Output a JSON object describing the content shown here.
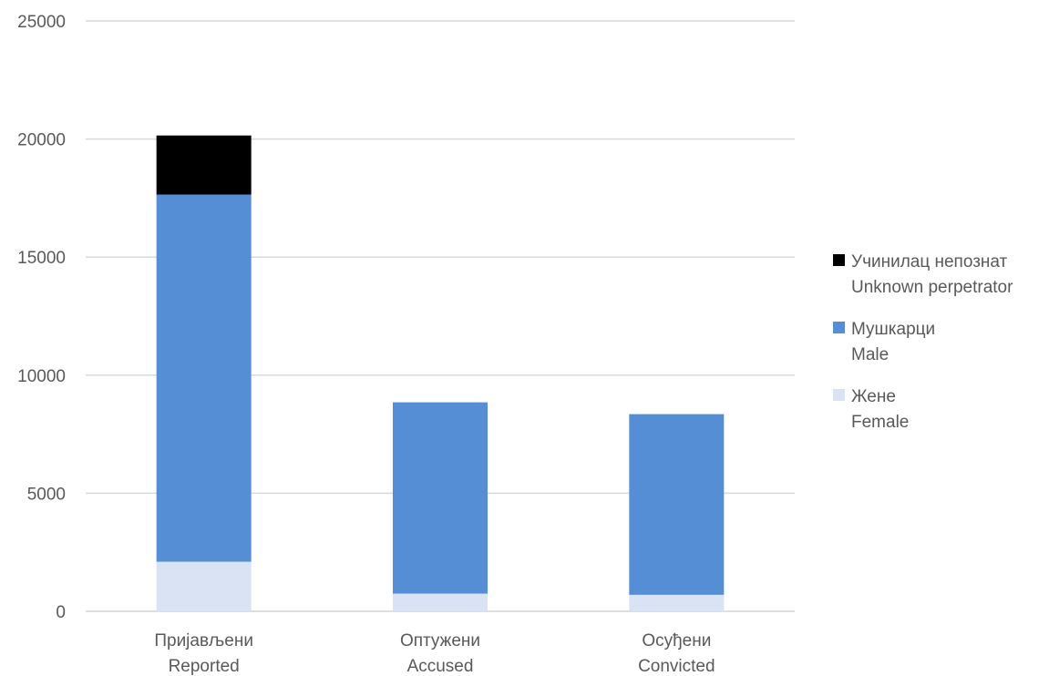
{
  "chart_data": {
    "type": "bar",
    "stacked": true,
    "categories": [
      [
        "Пријављени",
        "Reported"
      ],
      [
        "Оптужени",
        "Accused"
      ],
      [
        "Осуђени",
        "Convicted"
      ]
    ],
    "series": [
      {
        "name": [
          "Жене",
          "Female"
        ],
        "color": "#dae3f3",
        "values": [
          2100,
          750,
          700
        ]
      },
      {
        "name": [
          "Мушкарци",
          "Male"
        ],
        "color": "#558ed5",
        "values": [
          15550,
          8100,
          7650
        ]
      },
      {
        "name": [
          "Учинилац непознат",
          "Unknown perpetrator"
        ],
        "color": "#000000",
        "values": [
          2500,
          0,
          0
        ]
      }
    ],
    "ylim": [
      0,
      25000
    ],
    "yticks": [
      0,
      5000,
      10000,
      15000,
      20000,
      25000
    ],
    "grid": true,
    "legend_position": "right"
  }
}
